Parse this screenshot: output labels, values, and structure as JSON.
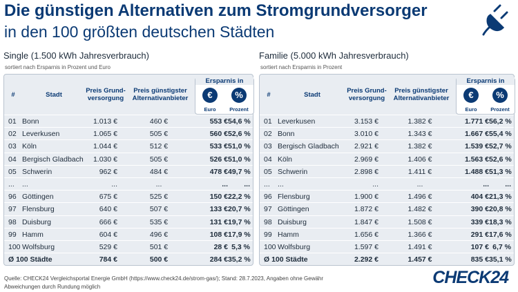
{
  "header": {
    "title": "Die günstigen Alternativen zum Stromgrundversorger",
    "subtitle": "in den 100 größten deutschen Städten"
  },
  "columns": {
    "rank": "#",
    "city": "Stadt",
    "base": "Preis Grund-versorgung",
    "alt": "Preis günstigster Alternativanbieter",
    "savings": "Ersparnis in",
    "euro_icon": "€",
    "percent_icon": "%",
    "euro": "Euro",
    "percent": "Prozent"
  },
  "panels": [
    {
      "title": "Single (1.500 kWh Jahresverbrauch)",
      "note": "sortiert nach Ersparnis in Prozent und Euro",
      "rows": [
        [
          "01",
          "Bonn",
          "1.013 €",
          "460 €",
          "553 €",
          "54,6 %"
        ],
        [
          "02",
          "Leverkusen",
          "1.065 €",
          "505 €",
          "560 €",
          "52,6 %"
        ],
        [
          "03",
          "Köln",
          "1.044 €",
          "512 €",
          "533 €",
          "51,0 %"
        ],
        [
          "04",
          "Bergisch Gladbach",
          "1.030 €",
          "505 €",
          "526 €",
          "51,0 %"
        ],
        [
          "05",
          "Schwerin",
          "962 €",
          "484 €",
          "478 €",
          "49,7 %"
        ],
        [
          "...",
          "...",
          "...",
          "...",
          "...",
          "..."
        ],
        [
          "96",
          "Göttingen",
          "675 €",
          "525 €",
          "150 €",
          "22,2 %"
        ],
        [
          "97",
          "Flensburg",
          "640 €",
          "507 €",
          "133 €",
          "20,7 %"
        ],
        [
          "98",
          "Duisburg",
          "666 €",
          "535 €",
          "131 €",
          "19,7 %"
        ],
        [
          "99",
          "Hamm",
          "604 €",
          "496 €",
          "108 €",
          "17,9 %"
        ],
        [
          "100",
          "Wolfsburg",
          "529 €",
          "501 €",
          "28 €",
          "5,3 %"
        ]
      ],
      "summary": [
        "Ø 100 Städte",
        "784 €",
        "500 €",
        "284 €",
        "35,2 %"
      ]
    },
    {
      "title": "Familie (5.000 kWh Jahresverbrauch)",
      "note": "sortiert nach Ersparnis in Prozent",
      "rows": [
        [
          "01",
          "Leverkusen",
          "3.153 €",
          "1.382 €",
          "1.771 €",
          "56,2 %"
        ],
        [
          "02",
          "Bonn",
          "3.010 €",
          "1.343 €",
          "1.667 €",
          "55,4 %"
        ],
        [
          "03",
          "Bergisch Gladbach",
          "2.921 €",
          "1.382 €",
          "1.539 €",
          "52,7 %"
        ],
        [
          "04",
          "Köln",
          "2.969 €",
          "1.406 €",
          "1.563 €",
          "52,6 %"
        ],
        [
          "05",
          "Schwerin",
          "2.898 €",
          "1.411 €",
          "1.488 €",
          "51,3 %"
        ],
        [
          "...",
          "...",
          "...",
          "...",
          "...",
          "..."
        ],
        [
          "96",
          "Flensburg",
          "1.900 €",
          "1.496 €",
          "404 €",
          "21,3 %"
        ],
        [
          "97",
          "Göttingen",
          "1.872 €",
          "1.482 €",
          "390 €",
          "20,8 %"
        ],
        [
          "98",
          "Duisburg",
          "1.847 €",
          "1.508 €",
          "339 €",
          "18,3 %"
        ],
        [
          "99",
          "Hamm",
          "1.656 €",
          "1.366 €",
          "291 €",
          "17,6 %"
        ],
        [
          "100",
          "Wolfsburg",
          "1.597 €",
          "1.491 €",
          "107 €",
          "6,7 %"
        ]
      ],
      "summary": [
        "Ø 100 Städte",
        "2.292 €",
        "1.457 €",
        "835 €",
        "35,1 %"
      ]
    }
  ],
  "footer": {
    "source": "Quelle: CHECK24 Vergleichsportal Energie GmbH (https://www.check24.de/strom-gas/); Stand: 28.7.2023, Angaben ohne Gewähr",
    "note": "Abweichungen durch Rundung möglich",
    "logo": "CHECK24"
  }
}
